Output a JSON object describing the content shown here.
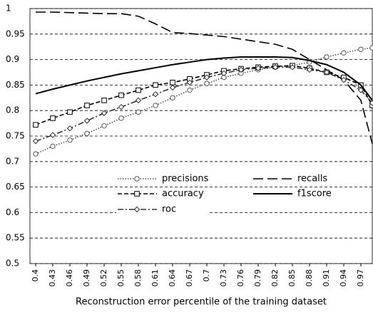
{
  "chart_data": {
    "type": "line",
    "x_label": "Reconstruction error percentile of the training dataset",
    "x": [
      0.4,
      0.43,
      0.46,
      0.49,
      0.52,
      0.55,
      0.58,
      0.61,
      0.64,
      0.67,
      0.7,
      0.73,
      0.76,
      0.79,
      0.82,
      0.85,
      0.88,
      0.91,
      0.94,
      0.97,
      0.99
    ],
    "series": [
      {
        "name": "precisions",
        "color": "#555555",
        "values": [
          0.715,
          0.73,
          0.742,
          0.755,
          0.77,
          0.785,
          0.797,
          0.81,
          0.825,
          0.84,
          0.853,
          0.865,
          0.873,
          0.88,
          0.885,
          0.888,
          0.895,
          0.905,
          0.913,
          0.92,
          0.923
        ]
      },
      {
        "name": "recalls",
        "color": "#000000",
        "values": [
          0.993,
          0.993,
          0.992,
          0.991,
          0.99,
          0.99,
          0.985,
          0.97,
          0.953,
          0.951,
          0.948,
          0.945,
          0.94,
          0.935,
          0.93,
          0.92,
          0.9,
          0.88,
          0.86,
          0.82,
          0.735
        ]
      },
      {
        "name": "accuracy",
        "color": "#000000",
        "values": [
          0.772,
          0.785,
          0.797,
          0.81,
          0.82,
          0.83,
          0.84,
          0.85,
          0.855,
          0.862,
          0.87,
          0.878,
          0.882,
          0.885,
          0.887,
          0.888,
          0.883,
          0.875,
          0.865,
          0.85,
          0.81
        ]
      },
      {
        "name": "f1score",
        "color": "#000000",
        "values": [
          0.833,
          0.842,
          0.85,
          0.858,
          0.865,
          0.872,
          0.878,
          0.884,
          0.89,
          0.895,
          0.9,
          0.903,
          0.905,
          0.905,
          0.905,
          0.904,
          0.898,
          0.89,
          0.875,
          0.85,
          0.82
        ]
      },
      {
        "name": "roc",
        "color": "#333333",
        "values": [
          0.74,
          0.752,
          0.765,
          0.78,
          0.795,
          0.807,
          0.82,
          0.832,
          0.845,
          0.855,
          0.865,
          0.873,
          0.88,
          0.883,
          0.885,
          0.885,
          0.88,
          0.875,
          0.86,
          0.84,
          0.815
        ]
      }
    ],
    "xlim": [
      0.39,
      0.99
    ],
    "xticks": [
      0.4,
      0.43,
      0.46,
      0.49,
      0.52,
      0.55,
      0.58,
      0.61,
      0.64,
      0.67,
      0.7,
      0.73,
      0.76,
      0.79,
      0.82,
      0.85,
      0.88,
      0.91,
      0.94,
      0.97
    ],
    "ylim": [
      0.5,
      1
    ],
    "yticks": [
      0.5,
      0.55,
      0.6,
      0.65,
      0.7,
      0.75,
      0.8,
      0.85,
      0.9,
      0.95,
      1
    ],
    "grid": true
  }
}
